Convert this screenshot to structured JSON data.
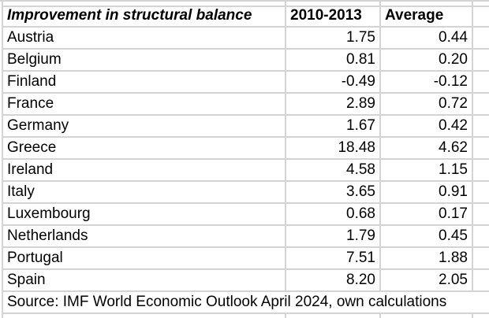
{
  "sheet": {
    "title": "Improvement in structural balance",
    "columns": [
      {
        "label": "2010-2013"
      },
      {
        "label": "Average"
      }
    ],
    "rows": [
      {
        "country": "Austria",
        "change_2010_2013": "1.75",
        "average": "0.44"
      },
      {
        "country": "Belgium",
        "change_2010_2013": "0.81",
        "average": "0.20"
      },
      {
        "country": "Finland",
        "change_2010_2013": "-0.49",
        "average": "-0.12"
      },
      {
        "country": "France",
        "change_2010_2013": "2.89",
        "average": "0.72"
      },
      {
        "country": "Germany",
        "change_2010_2013": "1.67",
        "average": "0.42"
      },
      {
        "country": "Greece",
        "change_2010_2013": "18.48",
        "average": "4.62"
      },
      {
        "country": "Ireland",
        "change_2010_2013": "4.58",
        "average": "1.15"
      },
      {
        "country": "Italy",
        "change_2010_2013": "3.65",
        "average": "0.91"
      },
      {
        "country": "Luxembourg",
        "change_2010_2013": "0.68",
        "average": "0.17"
      },
      {
        "country": "Netherlands",
        "change_2010_2013": "1.79",
        "average": "0.45"
      },
      {
        "country": "Portugal",
        "change_2010_2013": "7.51",
        "average": "1.88"
      },
      {
        "country": "Spain",
        "change_2010_2013": "8.20",
        "average": "2.05"
      }
    ],
    "source_note": "Source: IMF World Economic Outlook April 2024, own calculations"
  },
  "colors": {
    "gridline": "#d4d4d4",
    "text": "#000000",
    "background": "#ffffff"
  }
}
